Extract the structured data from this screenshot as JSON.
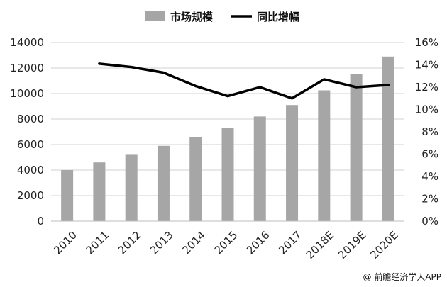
{
  "chart_data": {
    "type": "bar",
    "categories": [
      "2010",
      "2011",
      "2012",
      "2013",
      "2014",
      "2015",
      "2016",
      "2017",
      "2018E",
      "2019E",
      "2020E"
    ],
    "series": [
      {
        "name": "市场规模",
        "type": "bar",
        "axis": "left",
        "color": "#a6a6a6",
        "values": [
          4000,
          4600,
          5200,
          5900,
          6600,
          7300,
          8200,
          9100,
          10250,
          11500,
          12900
        ]
      },
      {
        "name": "同比增幅",
        "type": "line",
        "axis": "right",
        "color": "#000000",
        "values": [
          null,
          14.1,
          13.8,
          13.3,
          12.1,
          11.2,
          12.0,
          11.0,
          12.7,
          12.0,
          12.2
        ]
      }
    ],
    "ylim_left": [
      0,
      14000
    ],
    "yticks_left": [
      "0",
      "2000",
      "4000",
      "6000",
      "8000",
      "10000",
      "12000",
      "14000"
    ],
    "ylim_right": [
      0,
      16
    ],
    "yticks_right": [
      "0%",
      "2%",
      "4%",
      "6%",
      "8%",
      "10%",
      "12%",
      "14%",
      "16%"
    ],
    "grid": true,
    "legend": "top-center",
    "title": "",
    "xlabel": "",
    "ylabel": ""
  },
  "watermark": "@ 前瞻经济学人APP"
}
